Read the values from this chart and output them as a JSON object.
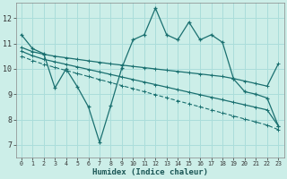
{
  "xlabel": "Humidex (Indice chaleur)",
  "background_color": "#cceee8",
  "grid_color": "#aaddda",
  "line_color": "#1a7070",
  "xlim": [
    -0.5,
    23.5
  ],
  "ylim": [
    6.5,
    12.6
  ],
  "xtick_labels": [
    "0",
    "1",
    "2",
    "3",
    "4",
    "5",
    "6",
    "7",
    "8",
    "9",
    "10",
    "11",
    "12",
    "13",
    "14",
    "15",
    "16",
    "17",
    "18",
    "19",
    "20",
    "21",
    "22",
    "23"
  ],
  "yticks": [
    7,
    8,
    9,
    10,
    11,
    12
  ],
  "curve1_x": [
    0,
    1,
    2,
    3,
    4,
    5,
    6,
    7,
    8,
    9,
    10,
    11,
    12,
    13,
    14,
    15,
    16,
    17,
    18,
    19,
    20,
    21,
    22,
    23
  ],
  "curve1_y": [
    11.35,
    10.8,
    10.6,
    9.25,
    10.0,
    9.3,
    8.5,
    7.1,
    8.55,
    10.05,
    11.15,
    11.35,
    12.4,
    11.35,
    11.15,
    11.85,
    11.15,
    11.35,
    11.05,
    9.6,
    9.1,
    9.0,
    8.85,
    7.75
  ],
  "curve2_x": [
    0,
    1,
    2,
    3,
    4,
    5,
    6,
    7,
    8,
    9,
    10,
    11,
    12,
    13,
    14,
    15,
    16,
    17,
    18,
    19,
    20,
    21,
    22,
    23
  ],
  "curve2_y": [
    10.85,
    10.68,
    10.58,
    10.5,
    10.44,
    10.38,
    10.32,
    10.26,
    10.2,
    10.15,
    10.1,
    10.05,
    10.0,
    9.95,
    9.9,
    9.85,
    9.8,
    9.75,
    9.7,
    9.62,
    9.52,
    9.42,
    9.32,
    10.2
  ],
  "curve3_x": [
    0,
    1,
    2,
    3,
    4,
    5,
    6,
    7,
    8,
    9,
    10,
    11,
    12,
    13,
    14,
    15,
    16,
    17,
    18,
    19,
    20,
    21,
    22,
    23
  ],
  "curve3_y": [
    10.7,
    10.52,
    10.38,
    10.28,
    10.18,
    10.08,
    9.98,
    9.88,
    9.78,
    9.68,
    9.58,
    9.48,
    9.38,
    9.28,
    9.18,
    9.08,
    8.98,
    8.88,
    8.78,
    8.68,
    8.58,
    8.48,
    8.38,
    7.75
  ],
  "curve4_x": [
    0,
    1,
    2,
    3,
    4,
    5,
    6,
    7,
    8,
    9,
    10,
    11,
    12,
    13,
    14,
    15,
    16,
    17,
    18,
    19,
    20,
    21,
    22,
    23
  ],
  "curve4_y": [
    10.5,
    10.33,
    10.18,
    10.06,
    9.94,
    9.82,
    9.7,
    9.58,
    9.46,
    9.34,
    9.22,
    9.1,
    8.98,
    8.86,
    8.74,
    8.62,
    8.5,
    8.38,
    8.26,
    8.14,
    8.02,
    7.9,
    7.78,
    7.6
  ]
}
